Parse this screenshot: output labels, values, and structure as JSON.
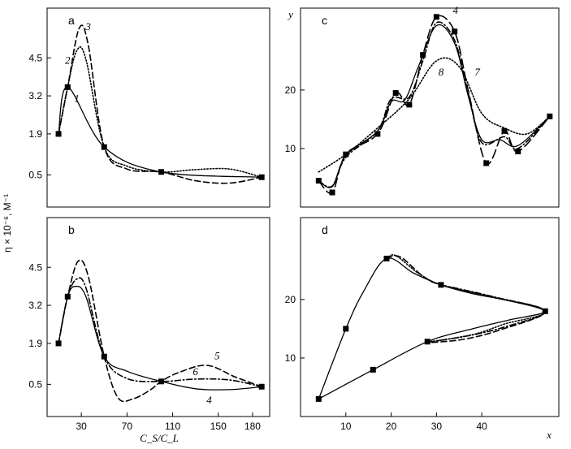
{
  "figure": {
    "ylabel": "η × 10⁻⁶, M⁻¹",
    "xlabel_left": "C_S/C_L",
    "xlabel_right": "x",
    "ylabel_right": "y"
  },
  "chart_data": [
    {
      "id": "a",
      "panel_label": "a",
      "type": "line",
      "xlim": [
        0,
        195
      ],
      "ylim": [
        -0.6,
        6.2
      ],
      "xticks": [],
      "yticks": [
        0.5,
        1.9,
        3.2,
        4.5
      ],
      "ytick_labels": [
        "0.5",
        "1.9",
        "3.2",
        "4.5"
      ],
      "markers": [
        [
          10,
          1.9
        ],
        [
          18,
          3.5
        ],
        [
          50,
          1.45
        ],
        [
          100,
          0.6
        ],
        [
          188,
          0.42
        ]
      ],
      "series": [
        {
          "name": "1",
          "style": "solid",
          "label_at": [
            26,
            3.0
          ],
          "points": [
            [
              10,
              1.9
            ],
            [
              18,
              3.5
            ],
            [
              50,
              1.45
            ],
            [
              100,
              0.6
            ],
            [
              188,
              0.42
            ]
          ]
        },
        {
          "name": "2",
          "style": "dotted",
          "label_at": [
            18,
            4.3
          ],
          "points": [
            [
              10,
              1.9
            ],
            [
              18,
              3.5
            ],
            [
              26,
              4.75
            ],
            [
              34,
              4.45
            ],
            [
              50,
              1.45
            ],
            [
              70,
              0.8
            ],
            [
              100,
              0.6
            ],
            [
              130,
              0.68
            ],
            [
              160,
              0.7
            ],
            [
              188,
              0.42
            ]
          ]
        },
        {
          "name": "3",
          "style": "dashed",
          "label_at": [
            36,
            5.45
          ],
          "points": [
            [
              10,
              1.9
            ],
            [
              18,
              3.5
            ],
            [
              28,
              5.5
            ],
            [
              36,
              4.95
            ],
            [
              50,
              1.45
            ],
            [
              70,
              0.7
            ],
            [
              100,
              0.6
            ],
            [
              130,
              0.3
            ],
            [
              160,
              0.22
            ],
            [
              188,
              0.42
            ]
          ]
        }
      ]
    },
    {
      "id": "b",
      "panel_label": "b",
      "type": "line",
      "xlim": [
        0,
        195
      ],
      "ylim": [
        -0.6,
        6.2
      ],
      "xticks": [
        30,
        70,
        110,
        150,
        180
      ],
      "yticks": [
        0.5,
        1.9,
        3.2,
        4.5
      ],
      "ytick_labels": [
        "0.5",
        "1.9",
        "3.2",
        "4.5"
      ],
      "markers": [
        [
          10,
          1.9
        ],
        [
          18,
          3.5
        ],
        [
          50,
          1.45
        ],
        [
          100,
          0.6
        ],
        [
          188,
          0.42
        ]
      ],
      "series": [
        {
          "name": "4",
          "style": "solid",
          "label_at": [
            142,
            -0.15
          ],
          "points": [
            [
              10,
              1.9
            ],
            [
              18,
              3.5
            ],
            [
              25,
              3.85
            ],
            [
              34,
              3.5
            ],
            [
              50,
              1.45
            ],
            [
              70,
              0.95
            ],
            [
              100,
              0.6
            ],
            [
              130,
              0.35
            ],
            [
              160,
              0.32
            ],
            [
              188,
              0.42
            ]
          ]
        },
        {
          "name": "5",
          "style": "dashed",
          "label_at": [
            149,
            1.35
          ],
          "points": [
            [
              10,
              1.9
            ],
            [
              18,
              3.5
            ],
            [
              27,
              4.7
            ],
            [
              36,
              4.2
            ],
            [
              50,
              1.45
            ],
            [
              62,
              0.05
            ],
            [
              75,
              0.0
            ],
            [
              90,
              0.3
            ],
            [
              100,
              0.6
            ],
            [
              115,
              0.9
            ],
            [
              140,
              1.15
            ],
            [
              165,
              0.75
            ],
            [
              188,
              0.42
            ]
          ]
        },
        {
          "name": "6",
          "style": "dashdot",
          "label_at": [
            130,
            0.82
          ],
          "points": [
            [
              10,
              1.9
            ],
            [
              18,
              3.5
            ],
            [
              26,
              4.1
            ],
            [
              34,
              3.8
            ],
            [
              50,
              1.45
            ],
            [
              70,
              0.7
            ],
            [
              100,
              0.6
            ],
            [
              130,
              0.68
            ],
            [
              160,
              0.65
            ],
            [
              188,
              0.42
            ]
          ]
        }
      ]
    },
    {
      "id": "c",
      "panel_label": "c",
      "type": "line",
      "xlim": [
        0,
        57
      ],
      "ylim": [
        0,
        34
      ],
      "xticks": [],
      "yticks": [
        10,
        20
      ],
      "ytick_labels": [
        "10",
        "20"
      ],
      "markers": [
        [
          4,
          4.5
        ],
        [
          7,
          2.5
        ],
        [
          10,
          9
        ],
        [
          17,
          12.5
        ],
        [
          21,
          19.5
        ],
        [
          24,
          17.5
        ],
        [
          27,
          26
        ],
        [
          30,
          32.5
        ],
        [
          34,
          30
        ],
        [
          41,
          7.5
        ],
        [
          45,
          13
        ],
        [
          48,
          9.5
        ],
        [
          55,
          15.5
        ]
      ],
      "series": [
        {
          "name": "4",
          "style": "longdash",
          "label_at": [
            34.2,
            33
          ],
          "points": [
            [
              4,
              4.5
            ],
            [
              7,
              2.5
            ],
            [
              10,
              9
            ],
            [
              17,
              12.5
            ],
            [
              21,
              19.5
            ],
            [
              24,
              17.5
            ],
            [
              27,
              26
            ],
            [
              30,
              32.5
            ],
            [
              34,
              30
            ],
            [
              37,
              20
            ],
            [
              41,
              7.5
            ],
            [
              45,
              13
            ],
            [
              48,
              9.5
            ],
            [
              55,
              15.5
            ]
          ]
        },
        {
          "name": "",
          "style": "solid",
          "points": [
            [
              4,
              4.5
            ],
            [
              7,
              3.5
            ],
            [
              10,
              8.8
            ],
            [
              17,
              13
            ],
            [
              20,
              18
            ],
            [
              23,
              18.3
            ],
            [
              26,
              24
            ],
            [
              30,
              31
            ],
            [
              34,
              28
            ],
            [
              37,
              19
            ],
            [
              40,
              11.5
            ],
            [
              44,
              11.5
            ],
            [
              48,
              10.5
            ],
            [
              55,
              15.5
            ]
          ]
        },
        {
          "name": "7",
          "style": "dashdot",
          "label_at": [
            39,
            22.5
          ],
          "points": [
            [
              4,
              4.5
            ],
            [
              7,
              3.6
            ],
            [
              10,
              8.5
            ],
            [
              17,
              13
            ],
            [
              20,
              18.5
            ],
            [
              24,
              18.8
            ],
            [
              27,
              25
            ],
            [
              30,
              31.5
            ],
            [
              34,
              28.5
            ],
            [
              37,
              19.5
            ],
            [
              40,
              11
            ],
            [
              45,
              12
            ],
            [
              48,
              10
            ],
            [
              55,
              15.5
            ]
          ]
        },
        {
          "name": "8",
          "style": "dotted",
          "label_at": [
            31,
            22.5
          ],
          "points": [
            [
              4,
              6
            ],
            [
              10,
              9
            ],
            [
              17,
              13.5
            ],
            [
              24,
              18.5
            ],
            [
              30,
              25
            ],
            [
              35,
              24
            ],
            [
              40,
              16
            ],
            [
              45,
              13.5
            ],
            [
              50,
              12.5
            ],
            [
              55,
              15.5
            ]
          ]
        }
      ]
    },
    {
      "id": "d",
      "panel_label": "d",
      "type": "line",
      "xlim": [
        0,
        57
      ],
      "ylim": [
        0,
        34
      ],
      "xticks": [
        10,
        20,
        30,
        40
      ],
      "yticks": [
        10,
        20
      ],
      "ytick_labels": [
        "10",
        "20"
      ],
      "markers": [
        [
          4,
          3
        ],
        [
          10,
          15
        ],
        [
          16,
          8
        ],
        [
          19,
          27
        ],
        [
          28,
          12.8
        ],
        [
          31,
          22.5
        ],
        [
          54,
          18
        ]
      ],
      "series": [
        {
          "name": "",
          "style": "solid",
          "points": [
            [
              4,
              3
            ],
            [
              10,
              15
            ],
            [
              14,
              21.5
            ],
            [
              19,
              27
            ],
            [
              25,
              24.5
            ],
            [
              31,
              22.5
            ],
            [
              38,
              21
            ],
            [
              46,
              19.8
            ],
            [
              54,
              18
            ],
            [
              46,
              16.5
            ],
            [
              38,
              15
            ],
            [
              28,
              12.8
            ],
            [
              16,
              8
            ],
            [
              4,
              3
            ]
          ]
        },
        {
          "name": "",
          "style": "dotted",
          "points": [
            [
              19,
              27
            ],
            [
              21,
              27.5
            ],
            [
              26,
              24.5
            ],
            [
              31,
              22.5
            ],
            [
              40,
              20.8
            ],
            [
              54,
              18
            ],
            [
              45,
              15.8
            ],
            [
              38,
              14
            ],
            [
              28,
              12.7
            ]
          ]
        },
        {
          "name": "",
          "style": "dashed",
          "points": [
            [
              19,
              27
            ],
            [
              22,
              27.3
            ],
            [
              27,
              24
            ],
            [
              31,
              22.5
            ],
            [
              42,
              20.5
            ],
            [
              54,
              18
            ],
            [
              44,
              14.8
            ],
            [
              36,
              13.2
            ],
            [
              28,
              12.6
            ]
          ]
        },
        {
          "name": "",
          "style": "dashdot",
          "points": [
            [
              31,
              22.5
            ],
            [
              43,
              20.4
            ],
            [
              54,
              18
            ],
            [
              45,
              15.3
            ],
            [
              37,
              13.8
            ],
            [
              28,
              12.7
            ]
          ]
        }
      ]
    }
  ]
}
